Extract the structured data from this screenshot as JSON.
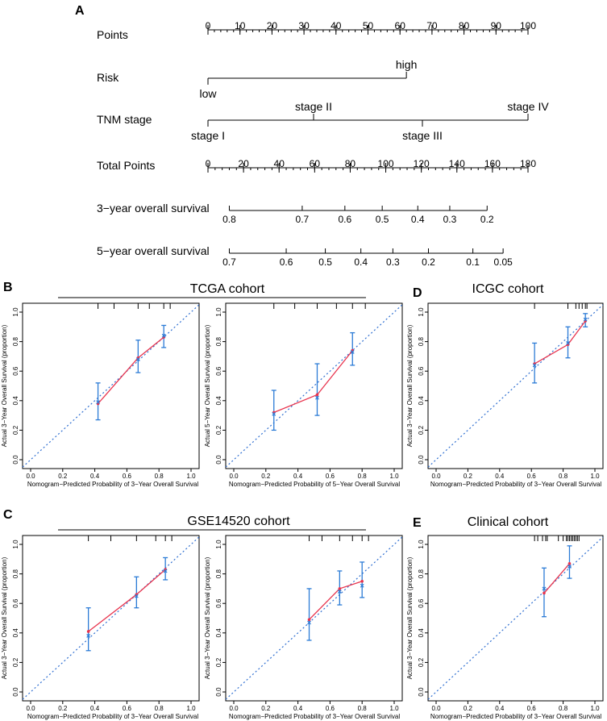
{
  "panel_labels": {
    "a": "A",
    "b": "B",
    "c": "C",
    "d": "D",
    "e": "E"
  },
  "nomogram": {
    "rows": [
      {
        "key": "points",
        "label": "Points",
        "min": 0,
        "max": 100,
        "ticks": [
          0,
          10,
          20,
          30,
          40,
          50,
          60,
          70,
          80,
          90,
          100
        ],
        "minor_step": 2
      },
      {
        "key": "risk",
        "label": "Risk",
        "min": 0,
        "max": 62,
        "levels": [
          {
            "name": "low",
            "points": 0,
            "pos": "below"
          },
          {
            "name": "high",
            "points": 62,
            "pos": "above"
          }
        ]
      },
      {
        "key": "tnm",
        "label": "TNM stage",
        "min": 0,
        "max": 100,
        "levels": [
          {
            "name": "stage I",
            "points": 0,
            "pos": "below"
          },
          {
            "name": "stage II",
            "points": 33,
            "pos": "above"
          },
          {
            "name": "stage III",
            "points": 67,
            "pos": "below"
          },
          {
            "name": "stage IV",
            "points": 100,
            "pos": "above"
          }
        ]
      },
      {
        "key": "total",
        "label": "Total Points",
        "min": 0,
        "max": 180,
        "ticks": [
          0,
          20,
          40,
          60,
          80,
          100,
          120,
          140,
          160,
          180
        ],
        "minor_step": 4
      },
      {
        "key": "os3",
        "label": "3−year overall survival",
        "min": 12,
        "max": 157,
        "ticks": [
          {
            "label": "0.8",
            "total": 12
          },
          {
            "label": "0.7",
            "total": 53
          },
          {
            "label": "0.6",
            "total": 77
          },
          {
            "label": "0.5",
            "total": 98
          },
          {
            "label": "0.4",
            "total": 118
          },
          {
            "label": "0.3",
            "total": 136
          },
          {
            "label": "0.2",
            "total": 157
          }
        ]
      },
      {
        "key": "os5",
        "label": "5−year overall survival",
        "min": 12,
        "max": 166,
        "ticks": [
          {
            "label": "0.7",
            "total": 12
          },
          {
            "label": "0.6",
            "total": 44
          },
          {
            "label": "0.5",
            "total": 66
          },
          {
            "label": "0.4",
            "total": 86
          },
          {
            "label": "0.3",
            "total": 104
          },
          {
            "label": "0.2",
            "total": 124
          },
          {
            "label": "0.1",
            "total": 149
          },
          {
            "label": "0.05",
            "total": 166
          }
        ]
      }
    ]
  },
  "cohorts": {
    "tcga": "TCGA cohort",
    "gse": "GSE14520 cohort",
    "icgc": "ICGC cohort",
    "clinical": "Clinical cohort"
  },
  "chart_data": [
    {
      "id": "B1",
      "type": "scatter",
      "cohort": "TCGA cohort",
      "xlabel": "Nomogram−Predicted Probability of 3−Year Overall Survival",
      "ylabel": "Actual 3−Year Overall Survival (proportion)",
      "xlim": [
        0,
        1
      ],
      "ylim": [
        0,
        1
      ],
      "ticks": [
        "0.0",
        "0.2",
        "0.4",
        "0.6",
        "0.8",
        "1.0"
      ],
      "points": [
        {
          "x": 0.42,
          "y": 0.38,
          "lo": 0.27,
          "hi": 0.52,
          "xc": 0.42,
          "yc": 0.39
        },
        {
          "x": 0.67,
          "y": 0.69,
          "lo": 0.59,
          "hi": 0.81,
          "xc": 0.67,
          "yc": 0.68
        },
        {
          "x": 0.83,
          "y": 0.83,
          "lo": 0.76,
          "hi": 0.91,
          "xc": 0.83,
          "yc": 0.84
        }
      ],
      "rug": [
        0.42,
        0.52,
        0.67,
        0.74,
        0.83,
        0.87
      ]
    },
    {
      "id": "B2",
      "type": "scatter",
      "cohort": "TCGA cohort",
      "xlabel": "Nomogram−Predicted Probability of 5−Year Overall Survival",
      "ylabel": "Actual 5−Year Overall Survival (proportion)",
      "xlim": [
        0,
        1
      ],
      "ylim": [
        0,
        1
      ],
      "ticks": [
        "0.0",
        "0.2",
        "0.4",
        "0.6",
        "0.8",
        "1.0"
      ],
      "points": [
        {
          "x": 0.25,
          "y": 0.32,
          "lo": 0.2,
          "hi": 0.47,
          "xc": 0.25,
          "yc": 0.31
        },
        {
          "x": 0.52,
          "y": 0.44,
          "lo": 0.3,
          "hi": 0.65,
          "xc": 0.52,
          "yc": 0.42
        },
        {
          "x": 0.74,
          "y": 0.74,
          "lo": 0.64,
          "hi": 0.86,
          "xc": 0.74,
          "yc": 0.73
        }
      ],
      "rug": [
        0.25,
        0.38,
        0.52,
        0.64,
        0.74,
        0.82
      ]
    },
    {
      "id": "C1",
      "type": "scatter",
      "cohort": "GSE14520 cohort",
      "xlabel": "Nomogram−Predicted Probability of 3−Year Overall Survival",
      "ylabel": "Actual 3−Year Overall Survival (proportion)",
      "xlim": [
        0,
        1
      ],
      "ylim": [
        0,
        1
      ],
      "ticks": [
        "0.0",
        "0.2",
        "0.4",
        "0.6",
        "0.8",
        "1.0"
      ],
      "points": [
        {
          "x": 0.36,
          "y": 0.41,
          "lo": 0.28,
          "hi": 0.57,
          "xc": 0.36,
          "yc": 0.38
        },
        {
          "x": 0.66,
          "y": 0.66,
          "lo": 0.57,
          "hi": 0.78,
          "xc": 0.66,
          "yc": 0.65
        },
        {
          "x": 0.84,
          "y": 0.83,
          "lo": 0.76,
          "hi": 0.91,
          "xc": 0.84,
          "yc": 0.82
        }
      ],
      "rug": [
        0.36,
        0.5,
        0.66,
        0.78,
        0.84,
        0.88
      ]
    },
    {
      "id": "C2",
      "type": "scatter",
      "cohort": "GSE14520 cohort",
      "xlabel": "Nomogram−Predicted Probability of 3−Year Overall Survival",
      "ylabel": "Actual 3−Year Overall Survival (proportion)",
      "xlim": [
        0,
        1
      ],
      "ylim": [
        0,
        1
      ],
      "ticks": [
        "0.0",
        "0.2",
        "0.4",
        "0.6",
        "0.8",
        "1.0"
      ],
      "points": [
        {
          "x": 0.47,
          "y": 0.49,
          "lo": 0.35,
          "hi": 0.7,
          "xc": 0.47,
          "yc": 0.47
        },
        {
          "x": 0.66,
          "y": 0.7,
          "lo": 0.59,
          "hi": 0.82,
          "xc": 0.66,
          "yc": 0.68
        },
        {
          "x": 0.8,
          "y": 0.75,
          "lo": 0.64,
          "hi": 0.88,
          "xc": 0.8,
          "yc": 0.72
        }
      ],
      "rug": [
        0.47,
        0.55,
        0.66,
        0.74,
        0.8,
        0.84
      ]
    },
    {
      "id": "D",
      "type": "scatter",
      "cohort": "ICGC cohort",
      "xlabel": "Nomogram−Predicted Probability of 3−Year Overall Survival",
      "ylabel": "Actual 3−Year Overall Survival (proportion)",
      "xlim": [
        0,
        1
      ],
      "ylim": [
        0,
        1
      ],
      "ticks": [
        "0.0",
        "0.2",
        "0.4",
        "0.6",
        "0.8",
        "1.0"
      ],
      "points": [
        {
          "x": 0.62,
          "y": 0.65,
          "lo": 0.52,
          "hi": 0.79,
          "xc": 0.62,
          "yc": 0.64
        },
        {
          "x": 0.83,
          "y": 0.78,
          "lo": 0.69,
          "hi": 0.9,
          "xc": 0.83,
          "yc": 0.79
        },
        {
          "x": 0.94,
          "y": 0.94,
          "lo": 0.9,
          "hi": 0.99,
          "xc": 0.94,
          "yc": 0.95
        }
      ],
      "rug": [
        0.62,
        0.83,
        0.88,
        0.9,
        0.92,
        0.94,
        0.95
      ]
    },
    {
      "id": "E",
      "type": "scatter",
      "cohort": "Clinical cohort",
      "xlabel": "Nomogram−Predicted Probability of 3−Year Overall Survival",
      "ylabel": "Actual 3−Year Overall Survival (proportion)",
      "xlim": [
        0,
        1
      ],
      "ylim": [
        0,
        1
      ],
      "ticks": [
        "0.0",
        "0.2",
        "0.4",
        "0.6",
        "0.8",
        "1.0"
      ],
      "points": [
        {
          "x": 0.68,
          "y": 0.67,
          "lo": 0.51,
          "hi": 0.84,
          "xc": 0.68,
          "yc": 0.7
        },
        {
          "x": 0.84,
          "y": 0.87,
          "lo": 0.77,
          "hi": 0.99,
          "xc": 0.84,
          "yc": 0.85
        }
      ],
      "rug": [
        0.62,
        0.64,
        0.67,
        0.69,
        0.7,
        0.77,
        0.8,
        0.82,
        0.83,
        0.84,
        0.85,
        0.86,
        0.87,
        0.88,
        0.89,
        0.9
      ]
    }
  ]
}
